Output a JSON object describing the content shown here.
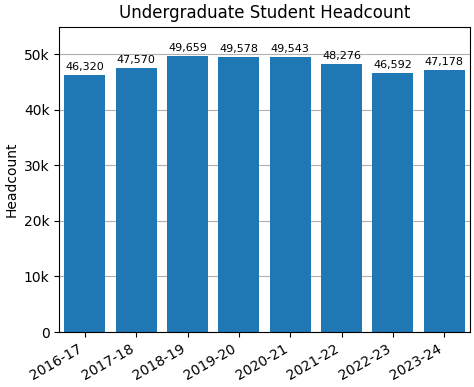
{
  "chart_data": {
    "type": "bar",
    "title": "Undergraduate Student Headcount",
    "ylabel": "Headcount",
    "categories": [
      "2016-17",
      "2017-18",
      "2018-19",
      "2019-20",
      "2020-21",
      "2021-22",
      "2022-23",
      "2023-24"
    ],
    "values": [
      46320,
      47570,
      49659,
      49578,
      49543,
      48276,
      46592,
      47178
    ],
    "value_labels": [
      "46,320",
      "47,570",
      "49,659",
      "49,578",
      "49,543",
      "48,276",
      "46,592",
      "47,178"
    ],
    "data_labels": true,
    "ylim": [
      0,
      55000
    ],
    "yticks": [
      0,
      {
        "value": 10000,
        "label": "10k"
      },
      {
        "value": 20000,
        "label": "20k"
      },
      {
        "value": 30000,
        "label": "30k"
      },
      {
        "value": 40000,
        "label": "40k"
      },
      {
        "value": 50000,
        "label": "50k"
      }
    ],
    "grid": "y"
  }
}
